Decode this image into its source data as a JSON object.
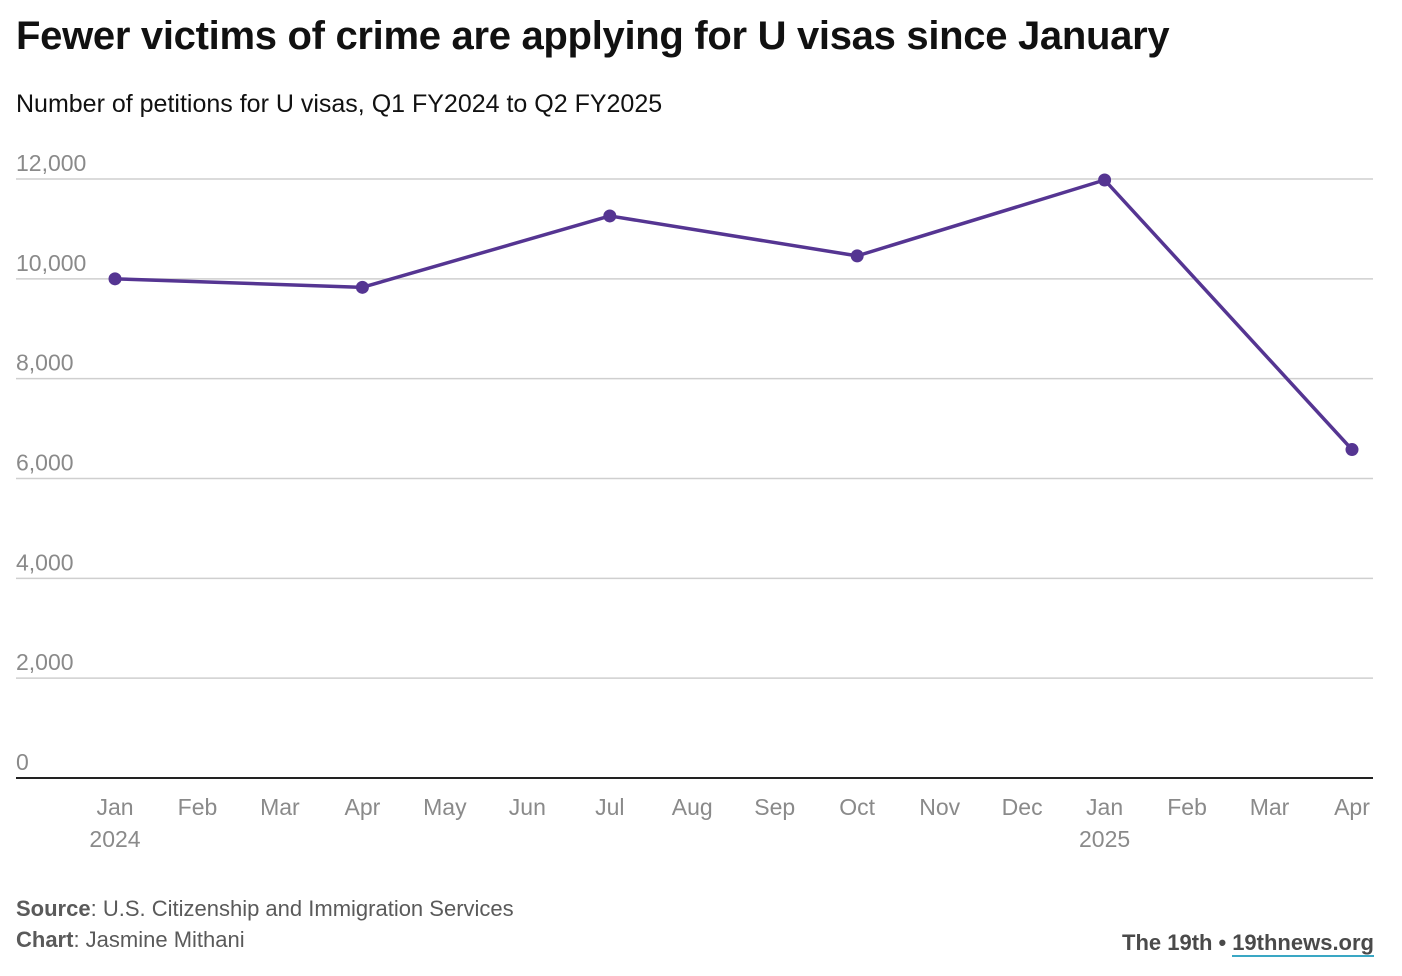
{
  "header": {
    "title": "Fewer victims of crime are applying for U visas since January",
    "subtitle": "Number of petitions for U visas, Q1 FY2024 to Q2 FY2025"
  },
  "chart_data": {
    "type": "line",
    "title": "Fewer victims of crime are applying for U visas since January",
    "subtitle": "Number of petitions for U visas, Q1 FY2024 to Q2 FY2025",
    "xlabel": "",
    "ylabel": "",
    "x": [
      "2024-01",
      "2024-04",
      "2024-07",
      "2024-10",
      "2025-01",
      "2025-04"
    ],
    "series": [
      {
        "values": [
          10000,
          9830,
          11260,
          10460,
          11980,
          6580
        ]
      }
    ],
    "ylim": [
      0,
      12000
    ],
    "yticks": [
      0,
      2000,
      4000,
      6000,
      8000,
      10000,
      12000
    ],
    "ytick_labels": [
      "0",
      "2,000",
      "4,000",
      "6,000",
      "8,000",
      "10,000",
      "12,000"
    ],
    "xticks": [
      {
        "month": "Jan",
        "year": "2024"
      },
      {
        "month": "Feb",
        "year": ""
      },
      {
        "month": "Mar",
        "year": ""
      },
      {
        "month": "Apr",
        "year": ""
      },
      {
        "month": "May",
        "year": ""
      },
      {
        "month": "Jun",
        "year": ""
      },
      {
        "month": "Jul",
        "year": ""
      },
      {
        "month": "Aug",
        "year": ""
      },
      {
        "month": "Sep",
        "year": ""
      },
      {
        "month": "Oct",
        "year": ""
      },
      {
        "month": "Nov",
        "year": ""
      },
      {
        "month": "Dec",
        "year": ""
      },
      {
        "month": "Jan",
        "year": "2025"
      },
      {
        "month": "Feb",
        "year": ""
      },
      {
        "month": "Mar",
        "year": ""
      },
      {
        "month": "Apr",
        "year": ""
      }
    ],
    "grid": true,
    "line_color": "#553592",
    "grid_color": "#cfcfcf",
    "axis_color": "#222222"
  },
  "footer": {
    "source_label": "Source",
    "source_text": ": U.S. Citizenship and Immigration Services",
    "chart_label": "Chart",
    "chart_text": ": Jasmine Mithani",
    "publisher": "The 19th",
    "separator": "•",
    "website": "19thnews.org"
  }
}
